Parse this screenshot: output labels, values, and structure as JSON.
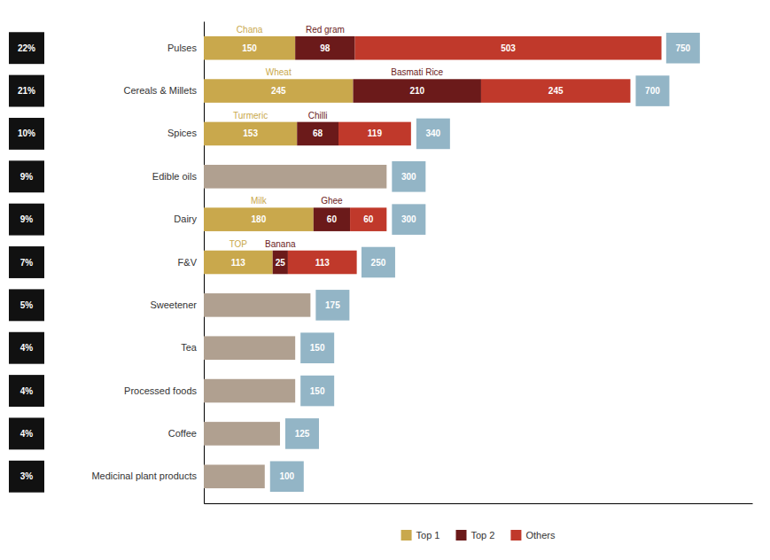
{
  "chart_data": {
    "type": "bar",
    "orientation": "horizontal",
    "stacked": true,
    "categories": [
      "Pulses",
      "Cereals & Millets",
      "Spices",
      "Edible oils",
      "Dairy",
      "F&V",
      "Sweetener",
      "Tea",
      "Processed foods",
      "Coffee",
      "Medicinal plant products"
    ],
    "series": [
      {
        "name": "Top 1",
        "color": "#C9A84C",
        "data_labels": true,
        "values": [
          150,
          245,
          153,
          null,
          180,
          113,
          null,
          null,
          null,
          null,
          null
        ],
        "labels": [
          "Chana",
          "Wheat",
          "Turmeric",
          null,
          "Milk",
          "TOP",
          null,
          null,
          null,
          null,
          null
        ]
      },
      {
        "name": "Top 2",
        "color": "#6B1A1A",
        "data_labels": true,
        "values": [
          98,
          210,
          68,
          null,
          60,
          25,
          null,
          null,
          null,
          null,
          null
        ],
        "labels": [
          "Red gram",
          "Basmati Rice",
          "Chilli",
          null,
          "Ghee",
          "Banana",
          null,
          null,
          null,
          null,
          null
        ]
      },
      {
        "name": "Others",
        "color": "#C0392B",
        "data_labels": true,
        "values": [
          503,
          245,
          119,
          null,
          60,
          113,
          null,
          null,
          null,
          null,
          null
        ]
      },
      {
        "color": "#B0A090",
        "data_labels": false,
        "values": [
          null,
          null,
          null,
          300,
          null,
          null,
          175,
          150,
          150,
          125,
          100
        ]
      }
    ],
    "totals": {
      "values": [
        750,
        700,
        340,
        300,
        300,
        250,
        175,
        150,
        150,
        125,
        100
      ],
      "color": "#93B5C6"
    },
    "percentages": {
      "values": [
        22,
        21,
        10,
        9,
        9,
        7,
        5,
        4,
        4,
        4,
        3
      ],
      "value_labels": [
        "22%",
        "21%",
        "10%",
        "9%",
        "9%",
        "7%",
        "5%",
        "4%",
        "4%",
        "4%",
        "3%"
      ],
      "color": "#111111"
    },
    "xlim": [
      0,
      900
    ],
    "tick_labels": "y",
    "legend": "bottom",
    "grid": false
  }
}
